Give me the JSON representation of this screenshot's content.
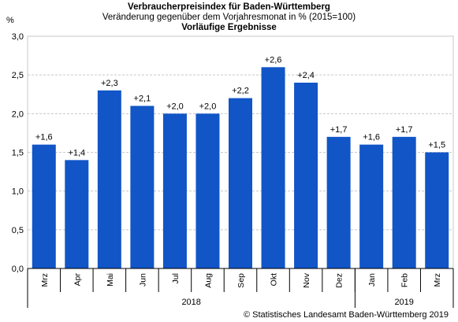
{
  "chart_data": {
    "type": "bar",
    "title": "Verbraucherpreisindex für Baden-Württemberg",
    "subtitle": "Veränderung gegenüber dem Vorjahresmonat in % (2015=100)",
    "subtitle2": "Vorläufige Ergebnisse",
    "ylabel": "%",
    "ylim": [
      0,
      3
    ],
    "yticks": [
      "0,0",
      "0,5",
      "1,0",
      "1,5",
      "2,0",
      "2,5",
      "3,0"
    ],
    "categories": [
      "Mrz",
      "Apr",
      "Mai",
      "Jun",
      "Jul",
      "Aug",
      "Sep",
      "Okt",
      "Nov",
      "Dez",
      "Jan",
      "Feb",
      "Mrz"
    ],
    "values": [
      1.6,
      1.4,
      2.3,
      2.1,
      2.0,
      2.0,
      2.2,
      2.6,
      2.4,
      1.7,
      1.6,
      1.7,
      1.5
    ],
    "value_labels": [
      "+1,6",
      "+1,4",
      "+2,3",
      "+2,1",
      "+2,0",
      "+2,0",
      "+2,2",
      "+2,6",
      "+2,4",
      "+1,7",
      "+1,6",
      "+1,7",
      "+1,5"
    ],
    "year_groups": [
      {
        "label": "2018",
        "count": 10
      },
      {
        "label": "2019",
        "count": 3
      }
    ],
    "bar_color": "#1155c7",
    "grid": true
  },
  "footer": "© Statistisches Landesamt Baden-Württemberg 2019"
}
